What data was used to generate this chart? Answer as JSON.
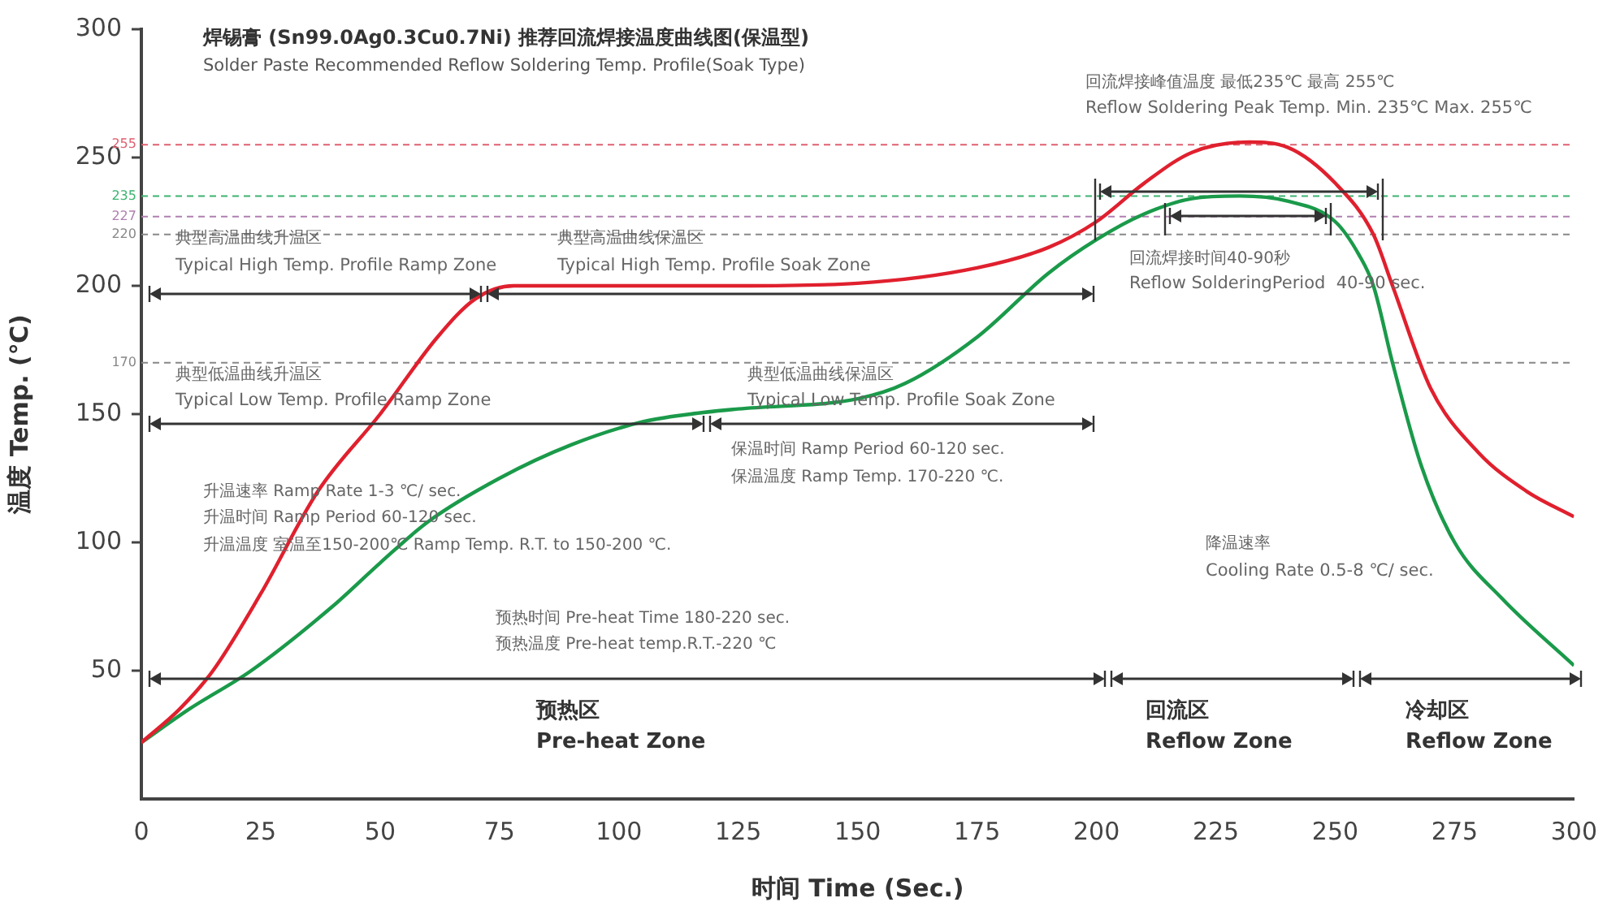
{
  "chart_data": {
    "type": "line",
    "title": "焊锡膏 (Sn99.0Ag0.3Cu0.7Ni) 推荐回流焊接温度曲线图(保温型)",
    "subtitle": "Solder Paste Recommended Reflow Soldering Temp. Profile(Soak Type)",
    "xlabel": "时间 Time (Sec.)",
    "ylabel": "温度 Temp. (℃)",
    "series": [
      {
        "color": "#e0202e",
        "x": [
          0,
          8,
          15,
          25,
          37,
          50,
          62,
          70,
          78,
          100,
          125,
          150,
          175,
          190,
          200,
          210,
          220,
          232,
          240,
          250,
          258,
          262,
          270,
          280,
          290,
          300
        ],
        "values": [
          22,
          35,
          50,
          80,
          120,
          150,
          180,
          195,
          200,
          200,
          200,
          201,
          207,
          215,
          225,
          240,
          252,
          256,
          254,
          240,
          220,
          200,
          160,
          135,
          120,
          110
        ]
      },
      {
        "color": "#1a9a4a",
        "x": [
          0,
          10,
          23,
          40,
          50,
          60,
          75,
          90,
          105,
          115,
          125,
          150,
          160,
          175,
          190,
          200,
          210,
          220,
          230,
          240,
          250,
          255,
          258,
          262,
          268,
          275,
          285,
          300
        ],
        "values": [
          22,
          35,
          50,
          75,
          92,
          108,
          125,
          138,
          147,
          150,
          152,
          156,
          162,
          180,
          205,
          218,
          228,
          234,
          235,
          233,
          225,
          212,
          200,
          170,
          130,
          100,
          78,
          52
        ]
      }
    ],
    "xlim": [
      0,
      300
    ],
    "xticks": [
      0,
      25,
      50,
      75,
      100,
      125,
      150,
      175,
      200,
      225,
      250,
      275,
      300
    ],
    "ylim": [
      0,
      300
    ],
    "yticks": [
      50,
      100,
      150,
      200,
      250,
      300
    ],
    "grid": false,
    "marker": "none",
    "line_style": "solid",
    "legend": false,
    "ref_lines": [
      {
        "axis": "y",
        "value": 255,
        "label": "255",
        "color": "#e06070",
        "line_style": "dashed"
      },
      {
        "axis": "y",
        "value": 235,
        "label": "235",
        "color": "#3cb371",
        "line_style": "dashed"
      },
      {
        "axis": "y",
        "value": 227,
        "label": "227",
        "color": "#b080b0",
        "line_style": "dashed"
      },
      {
        "axis": "y",
        "value": 220,
        "label": "220",
        "color": "#888888",
        "line_style": "dashed"
      },
      {
        "axis": "y",
        "value": 170,
        "label": "170",
        "color": "#888888",
        "line_style": "dashed"
      }
    ],
    "annotations": [
      "典型高温曲线升温区",
      "Typical High Temp. Profile Ramp Zone",
      "典型高温曲线保温区",
      "Typical High Temp. Profile Soak Zone",
      "典型低温曲线升温区",
      "Typical Low Temp. Profile Ramp Zone",
      "典型低温曲线保温区",
      "Typical Low Temp. Profile Soak Zone",
      "保温时间 Ramp Period 60-120 sec.",
      "保温温度 Ramp Temp. 170-220 ℃.",
      "升温速率 Ramp Rate 1-3 ℃/ sec.",
      "升温时间 Ramp Period 60-120 sec.",
      "升温温度 室温至150-200℃ Ramp Temp. R.T. to 150-200 ℃.",
      "预热时间 Pre-heat Time 180-220 sec.",
      "预热温度 Pre-heat temp.R.T.-220 ℃",
      "回流焊接峰值温度 最低235℃ 最高 255℃",
      "Reflow Soldering Peak Temp. Min. 235℃ Max. 255℃",
      {
        "text": "回流焊接时间40-90秒",
        "x": 230,
        "y": 227
      },
      "Reflow SolderingPeriod  40-90 sec.",
      "降温速率",
      "Cooling Rate 0.5-8 ℃/ sec.",
      "预热区",
      "Pre-heat Zone",
      "回流区",
      "Reflow Zone",
      "冷却区",
      "Reflow Zone"
    ]
  }
}
